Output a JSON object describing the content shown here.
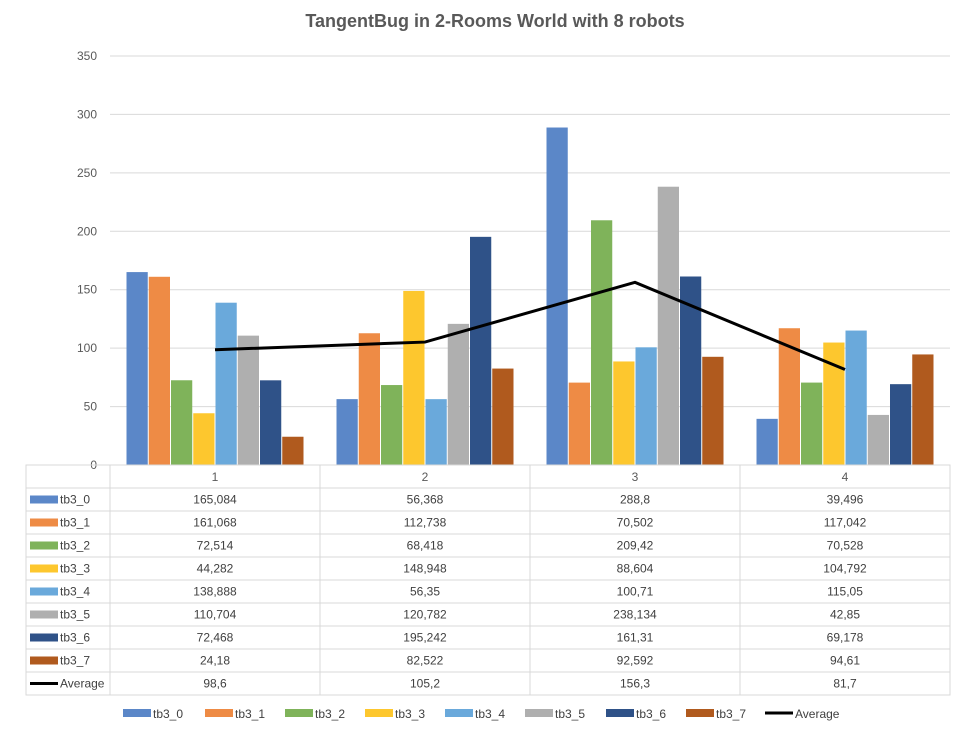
{
  "chart_data": {
    "type": "bar",
    "title": "TangentBug in 2-Rooms World with 8 robots",
    "xlabel": "",
    "ylabel": "",
    "ylim": [
      0,
      350
    ],
    "yticks": [
      "0",
      "50",
      "100",
      "150",
      "200",
      "250",
      "300",
      "350"
    ],
    "grid": true,
    "legend_position": "bottom",
    "categories": [
      "1",
      "2",
      "3",
      "4"
    ],
    "series": [
      {
        "name": "tb3_0",
        "type": "bar",
        "color": "#5B87C8",
        "values": [
          165.084,
          56.368,
          288.8,
          39.496
        ],
        "labels": [
          "165,084",
          "56,368",
          "288,8",
          "39,496"
        ]
      },
      {
        "name": "tb3_1",
        "type": "bar",
        "color": "#EE8B45",
        "values": [
          161.068,
          112.738,
          70.502,
          117.042
        ],
        "labels": [
          "161,068",
          "112,738",
          "70,502",
          "117,042"
        ]
      },
      {
        "name": "tb3_2",
        "type": "bar",
        "color": "#7FB35A",
        "values": [
          72.514,
          68.418,
          209.42,
          70.528
        ],
        "labels": [
          "72,514",
          "68,418",
          "209,42",
          "70,528"
        ]
      },
      {
        "name": "tb3_3",
        "type": "bar",
        "color": "#FDC72E",
        "values": [
          44.282,
          148.948,
          88.604,
          104.792
        ],
        "labels": [
          "44,282",
          "148,948",
          "88,604",
          "104,792"
        ]
      },
      {
        "name": "tb3_4",
        "type": "bar",
        "color": "#6AA9DB",
        "values": [
          138.888,
          56.35,
          100.71,
          115.05
        ],
        "labels": [
          "138,888",
          "56,35",
          "100,71",
          "115,05"
        ]
      },
      {
        "name": "tb3_5",
        "type": "bar",
        "color": "#AFAFAF",
        "values": [
          110.704,
          120.782,
          238.134,
          42.85
        ],
        "labels": [
          "110,704",
          "120,782",
          "238,134",
          "42,85"
        ]
      },
      {
        "name": "tb3_6",
        "type": "bar",
        "color": "#2F5288",
        "values": [
          72.468,
          195.242,
          161.31,
          69.178
        ],
        "labels": [
          "72,468",
          "195,242",
          "161,31",
          "69,178"
        ]
      },
      {
        "name": "tb3_7",
        "type": "bar",
        "color": "#B05A1E",
        "values": [
          24.18,
          82.522,
          92.592,
          94.61
        ],
        "labels": [
          "24,18",
          "82,522",
          "92,592",
          "94,61"
        ]
      },
      {
        "name": "Average",
        "type": "line",
        "color": "#000000",
        "values": [
          98.6,
          105.2,
          156.3,
          81.7
        ],
        "labels": [
          "98,6",
          "105,2",
          "156,3",
          "81,7"
        ]
      }
    ]
  }
}
